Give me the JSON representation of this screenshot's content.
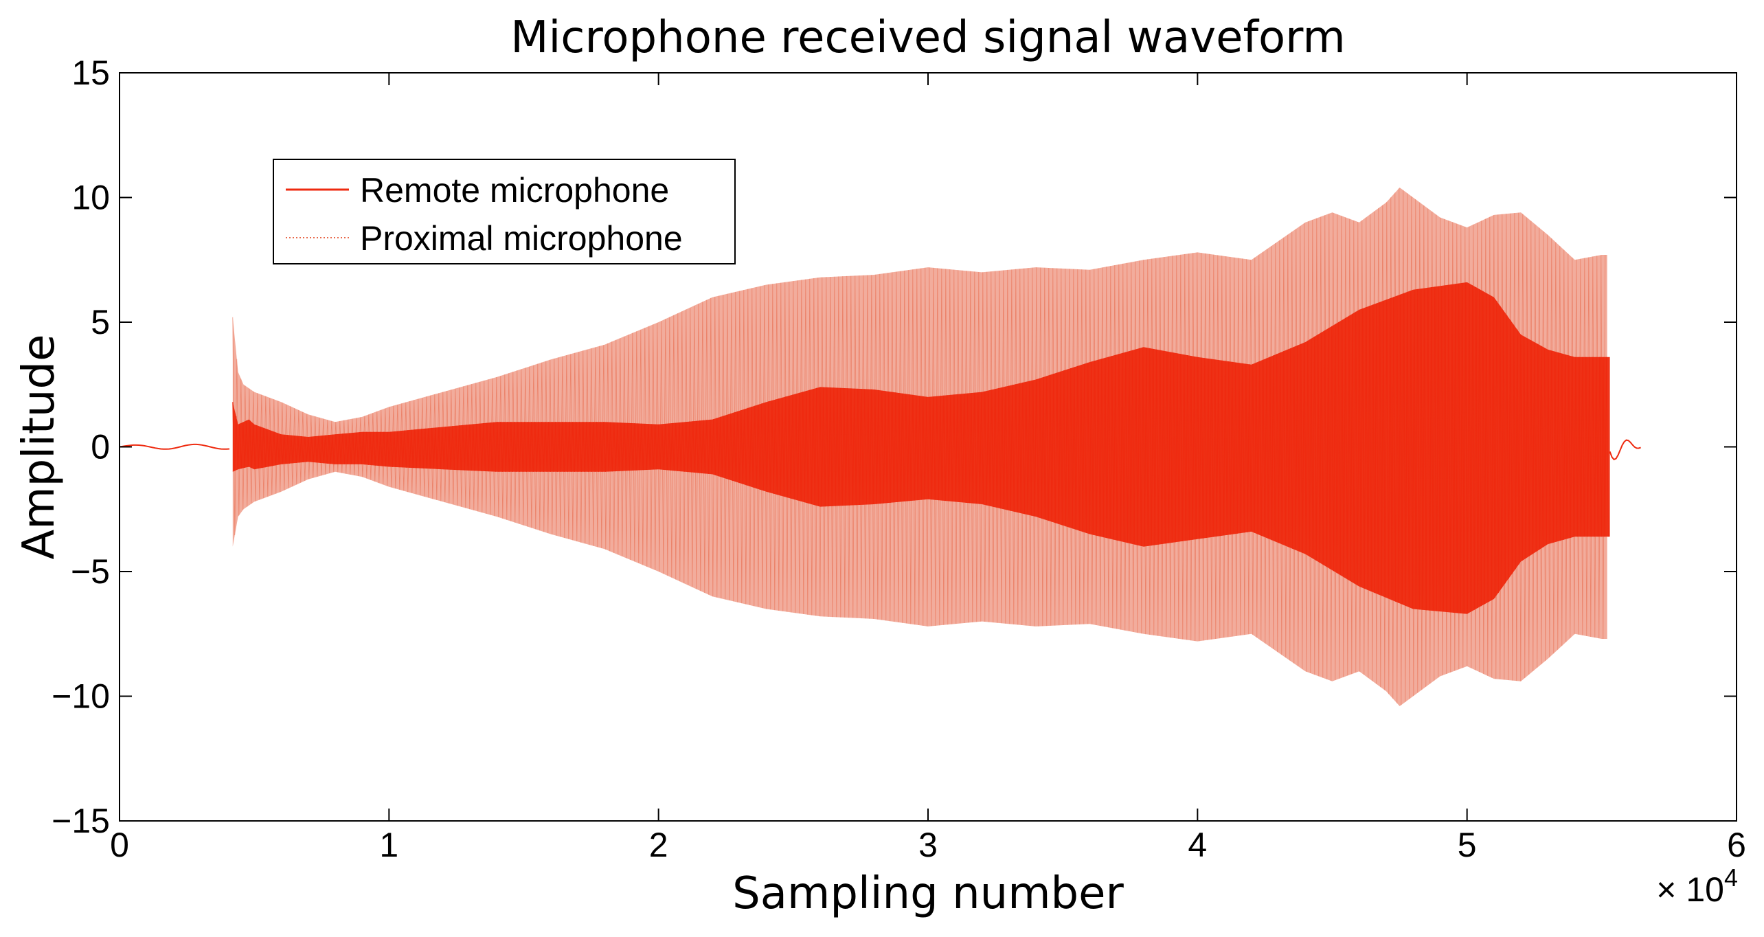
{
  "chart_data": {
    "type": "line",
    "title": "Microphone received signal waveform",
    "xlabel": "Sampling number",
    "ylabel": "Amplitude",
    "x_multiplier": "× 10",
    "x_multiplier_exp": "4",
    "xlim": [
      0,
      60000
    ],
    "ylim": [
      -15,
      15
    ],
    "xticks": [
      0,
      10000,
      20000,
      30000,
      40000,
      50000,
      60000
    ],
    "xtick_labels": [
      "0",
      "1",
      "2",
      "3",
      "4",
      "5",
      "6"
    ],
    "yticks": [
      -15,
      -10,
      -5,
      0,
      5,
      10,
      15
    ],
    "ytick_labels": [
      "−15",
      "−10",
      "−5",
      "0",
      "5",
      "10",
      "15"
    ],
    "legend_position": "top-left",
    "series": [
      {
        "name": "Proximal microphone",
        "color": "#e8684a",
        "style": "dotted",
        "envelope_x": [
          4200,
          4400,
          4600,
          5000,
          6000,
          7000,
          8000,
          9000,
          10000,
          12000,
          14000,
          16000,
          18000,
          20000,
          22000,
          24000,
          26000,
          28000,
          30000,
          32000,
          34000,
          36000,
          38000,
          40000,
          42000,
          44000,
          45000,
          46000,
          47000,
          47500,
          48000,
          49000,
          50000,
          51000,
          52000,
          53000,
          54000,
          55000,
          55200
        ],
        "envelope_upper": [
          5.2,
          3.0,
          2.5,
          2.2,
          1.8,
          1.3,
          1.0,
          1.2,
          1.6,
          2.2,
          2.8,
          3.5,
          4.1,
          5.0,
          6.0,
          6.5,
          6.8,
          6.9,
          7.2,
          7.0,
          7.2,
          7.1,
          7.5,
          7.8,
          7.5,
          9.0,
          9.4,
          9.0,
          9.8,
          10.4,
          10.0,
          9.2,
          8.8,
          9.3,
          9.4,
          8.5,
          7.5,
          7.7,
          7.7
        ],
        "envelope_lower": [
          -4.0,
          -2.8,
          -2.5,
          -2.2,
          -1.8,
          -1.3,
          -1.0,
          -1.2,
          -1.6,
          -2.2,
          -2.8,
          -3.5,
          -4.1,
          -5.0,
          -6.0,
          -6.5,
          -6.8,
          -6.9,
          -7.2,
          -7.0,
          -7.2,
          -7.1,
          -7.5,
          -7.8,
          -7.5,
          -9.0,
          -9.4,
          -9.0,
          -9.8,
          -10.4,
          -10.0,
          -9.2,
          -8.8,
          -9.3,
          -9.4,
          -8.5,
          -7.5,
          -7.7,
          -7.7
        ]
      },
      {
        "name": "Remote microphone",
        "color": "#ee2a0f",
        "style": "solid",
        "envelope_x": [
          4200,
          4400,
          4800,
          5000,
          6000,
          7000,
          8000,
          9000,
          10000,
          12000,
          14000,
          16000,
          18000,
          20000,
          22000,
          24000,
          26000,
          28000,
          30000,
          32000,
          34000,
          36000,
          38000,
          40000,
          42000,
          44000,
          46000,
          48000,
          50000,
          51000,
          52000,
          53000,
          54000,
          55000,
          55300
        ],
        "envelope_upper": [
          1.8,
          0.9,
          1.1,
          0.9,
          0.5,
          0.4,
          0.5,
          0.6,
          0.6,
          0.8,
          1.0,
          1.0,
          1.0,
          0.9,
          1.1,
          1.8,
          2.4,
          2.3,
          2.0,
          2.2,
          2.7,
          3.4,
          4.0,
          3.6,
          3.3,
          4.2,
          5.5,
          6.3,
          6.6,
          6.0,
          4.5,
          3.9,
          3.6,
          3.6,
          3.6
        ],
        "envelope_lower": [
          -1.0,
          -0.9,
          -0.8,
          -0.9,
          -0.7,
          -0.6,
          -0.7,
          -0.7,
          -0.8,
          -0.9,
          -1.0,
          -1.0,
          -1.0,
          -0.9,
          -1.1,
          -1.8,
          -2.4,
          -2.3,
          -2.1,
          -2.3,
          -2.8,
          -3.5,
          -4.0,
          -3.7,
          -3.4,
          -4.3,
          -5.6,
          -6.5,
          -6.7,
          -6.1,
          -4.6,
          -3.9,
          -3.6,
          -3.6,
          -3.6
        ],
        "pre_signal_x": [
          0,
          4100
        ],
        "pre_signal_amplitude": 0.1,
        "tail_x": [
          55300,
          56500
        ],
        "tail_amplitude": 0.2
      }
    ]
  }
}
